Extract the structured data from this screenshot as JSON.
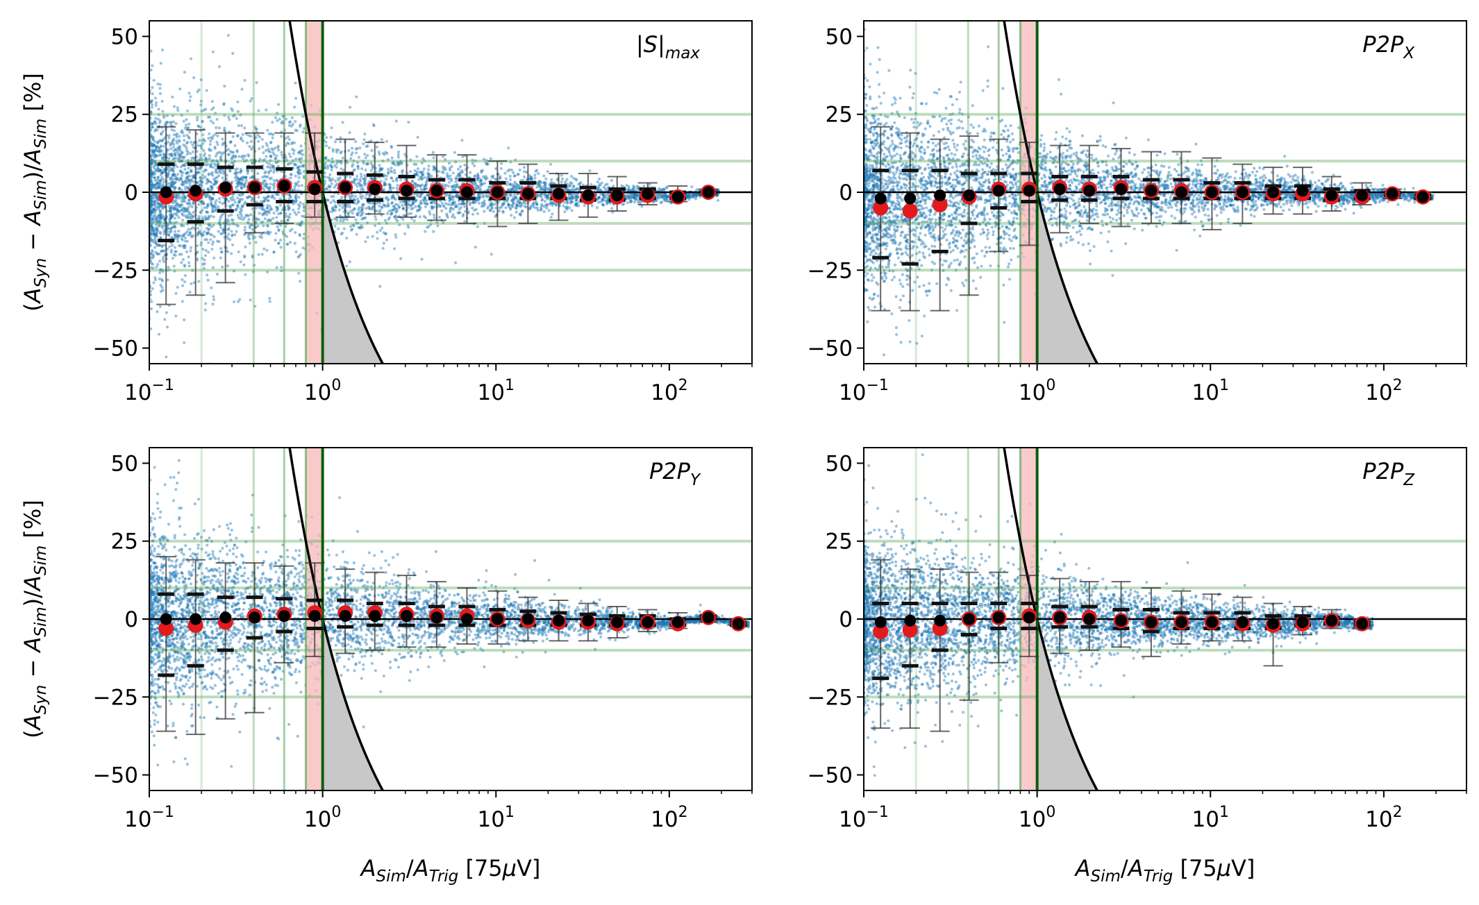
{
  "figure": {
    "ylabel": "(A_Syn − A_Sim)/A_Sim [%]",
    "xlabel": "A_Sim/A_Trig [75μV]"
  },
  "colors": {
    "scatter": "#1f77b4",
    "mean": "#e31a1c",
    "median": "#000000",
    "error_bar": "#333333",
    "grid_green": "#5aa85a",
    "threshold_line": "#0b5d0b",
    "shade_red": "#f6b8b8",
    "shade_gray": "#c8c8c8"
  },
  "shared_axes": {
    "x_scale": "log",
    "xlim": [
      0.1,
      300
    ],
    "ylim": [
      -55,
      55
    ],
    "x_ticks": [
      0.1,
      1,
      10,
      100
    ],
    "x_tick_labels": [
      {
        "base": "10",
        "exp": "−1"
      },
      {
        "base": "10",
        "exp": "0"
      },
      {
        "base": "10",
        "exp": "1"
      },
      {
        "base": "10",
        "exp": "2"
      }
    ],
    "y_ticks": [
      50,
      25,
      0,
      -25,
      -50
    ],
    "y_tick_labels": [
      "50",
      "25",
      "0",
      "−25",
      "−50"
    ],
    "horizontal_lines": [
      25,
      10,
      -10,
      -25
    ],
    "vertical_lines": [
      0.2,
      0.4,
      0.6,
      0.8
    ],
    "threshold": 1.0
  },
  "chart_data": [
    {
      "type": "scatter",
      "title": "|S|",
      "title_sub": "max",
      "title_sub_style": "italic",
      "x": [
        0.125,
        0.185,
        0.275,
        0.405,
        0.6,
        0.9,
        1.35,
        2.0,
        3.05,
        4.55,
        6.8,
        10.2,
        15.3,
        23,
        34,
        50,
        75,
        112,
        168
      ],
      "mean": [
        -1.5,
        -0.5,
        1,
        1.5,
        2,
        1.5,
        1.5,
        1.5,
        1,
        0.5,
        0.5,
        0,
        -0.5,
        -1,
        -1.5,
        -1.5,
        -1,
        -1.5,
        0
      ],
      "median": [
        0,
        0.5,
        1.5,
        1.5,
        2,
        1,
        1.5,
        1,
        0.5,
        0.5,
        0,
        0,
        -0.5,
        -0.5,
        -1,
        -1,
        -0.5,
        -1.5,
        0
      ],
      "whisker_low": [
        -36,
        -33,
        -29,
        -13,
        -10,
        -8,
        -8,
        -7,
        -8,
        -9,
        -10,
        -11,
        -10,
        -9,
        -8,
        -6,
        -4,
        -3,
        -1
      ],
      "whisker_high": [
        21,
        20,
        19,
        19,
        19,
        19,
        17,
        16,
        15,
        12,
        12,
        10,
        9,
        6,
        6,
        5,
        3,
        2,
        1
      ],
      "q_low": [
        -15.5,
        -9.5,
        -6,
        -4,
        -3,
        -3,
        -3,
        -2.5,
        -2,
        -2,
        -2,
        -2,
        -2,
        -2,
        -2.5,
        -2.5,
        -2,
        -2,
        0
      ],
      "q_high": [
        9,
        9,
        8,
        8,
        7.5,
        6.5,
        6,
        5.5,
        5,
        4,
        4,
        3,
        3,
        2,
        1.5,
        1,
        1,
        0,
        0
      ],
      "scatter_spread": [
        33,
        31,
        29,
        27,
        25,
        23,
        20,
        17,
        14,
        12,
        10,
        9,
        8,
        6,
        5,
        4,
        3,
        2,
        1
      ]
    },
    {
      "type": "scatter",
      "title": "P2P",
      "title_sub": "X",
      "title_sub_style": "italic",
      "x": [
        0.125,
        0.185,
        0.275,
        0.405,
        0.6,
        0.9,
        1.35,
        2.0,
        3.05,
        4.55,
        6.8,
        10.2,
        15.3,
        23,
        34,
        50,
        75,
        112,
        168
      ],
      "mean": [
        -5,
        -6,
        -4,
        -1.5,
        1,
        1,
        1.5,
        1,
        1.5,
        0.5,
        0.5,
        0,
        0,
        -0.5,
        -0.5,
        -1.5,
        -1.5,
        -0.5,
        -1.5
      ],
      "median": [
        -2,
        -2,
        -1,
        -1,
        0.5,
        0.5,
        1,
        0.5,
        1,
        0.5,
        0,
        0,
        0,
        0,
        0.5,
        -1,
        -1,
        -0.5,
        -1.5
      ],
      "whisker_low": [
        -38,
        -38,
        -38,
        -33,
        -19,
        -17,
        -13,
        -10,
        -11,
        -10,
        -10,
        -12,
        -10,
        -7,
        -7,
        -6,
        -4,
        -2,
        -2
      ],
      "whisker_high": [
        21,
        19,
        17,
        18,
        17,
        16,
        15,
        15,
        14,
        13,
        13,
        11,
        9,
        8,
        8,
        5,
        3,
        1,
        0
      ],
      "q_low": [
        -21,
        -23,
        -19,
        -10,
        -5,
        -3,
        -2.5,
        -2.5,
        -2,
        -2,
        -2,
        -2,
        -2,
        -2,
        -2,
        -2.5,
        -2,
        -1,
        -2
      ],
      "q_high": [
        7,
        7,
        7,
        6,
        6,
        6,
        5,
        5,
        5,
        4,
        4,
        3,
        3,
        2,
        2,
        1,
        0.5,
        0,
        -1
      ],
      "scatter_spread": [
        35,
        33,
        31,
        28,
        25,
        23,
        20,
        17,
        14,
        12,
        10,
        9,
        8,
        6,
        5,
        4,
        3,
        2,
        1
      ]
    },
    {
      "type": "scatter",
      "title": "P2P",
      "title_sub": "Y",
      "title_sub_style": "italic",
      "x": [
        0.125,
        0.185,
        0.275,
        0.405,
        0.6,
        0.9,
        1.35,
        2.0,
        3.05,
        4.55,
        6.8,
        10.2,
        15.3,
        23,
        34,
        50,
        75,
        112,
        168,
        250
      ],
      "mean": [
        -3,
        -2,
        -1,
        1,
        1.5,
        2,
        2,
        2,
        1.5,
        1,
        1,
        0,
        -0.5,
        -1,
        -1,
        -1.5,
        -1,
        -1.5,
        0.5,
        -1.5
      ],
      "median": [
        0,
        0,
        0.5,
        0.5,
        1,
        1,
        1,
        1,
        1,
        0.5,
        0,
        0,
        0,
        -0.5,
        -0.5,
        -1,
        -1,
        -1,
        0.5,
        -1.5
      ],
      "whisker_low": [
        -36,
        -37,
        -32,
        -30,
        -14,
        -12,
        -11,
        -10,
        -9,
        -9,
        -8,
        -8,
        -7,
        -7,
        -7,
        -6,
        -4,
        -3,
        -1,
        -2
      ],
      "whisker_high": [
        20,
        19,
        18,
        18,
        17,
        18,
        16,
        15,
        14,
        12,
        10,
        9,
        7,
        6,
        5,
        4,
        3,
        2,
        1,
        0
      ],
      "q_low": [
        -18,
        -15,
        -10,
        -6,
        -4,
        -3,
        -2.5,
        -2,
        -2,
        -2,
        -2,
        -2,
        -2,
        -2,
        -2,
        -2,
        -2,
        -2,
        0,
        -2
      ],
      "q_high": [
        8,
        8,
        7,
        7,
        6.5,
        6,
        6,
        5,
        5,
        4,
        4,
        3,
        2.5,
        2,
        1.5,
        1,
        1,
        0,
        1,
        -1
      ],
      "scatter_spread": [
        33,
        31,
        29,
        27,
        25,
        23,
        21,
        18,
        15,
        12,
        10,
        9,
        8,
        6,
        5,
        4,
        3,
        2,
        1,
        1
      ]
    },
    {
      "type": "scatter",
      "title": "P2P",
      "title_sub": "Z",
      "title_sub_style": "italic",
      "x": [
        0.125,
        0.185,
        0.275,
        0.405,
        0.6,
        0.9,
        1.35,
        2.0,
        3.05,
        4.55,
        6.8,
        10.2,
        15.3,
        23,
        34,
        50,
        75
      ],
      "mean": [
        -4,
        -3.5,
        -3,
        0,
        0.5,
        1,
        0.5,
        0.5,
        -0.5,
        -1,
        -1,
        -1,
        -1.5,
        -2,
        -1.5,
        -0.5,
        -1.5
      ],
      "median": [
        -1,
        -0.5,
        -0.5,
        0,
        0.5,
        0.5,
        0.5,
        0,
        -0.5,
        -1,
        -1,
        -1,
        -1,
        -1.5,
        -1,
        -0.5,
        -1.5
      ],
      "whisker_low": [
        -35,
        -35,
        -36,
        -26,
        -14,
        -12,
        -11,
        -10,
        -9,
        -12,
        -8,
        -7,
        -7,
        -15,
        -5,
        -3,
        -3
      ],
      "whisker_high": [
        19,
        16,
        16,
        15,
        15,
        14,
        13,
        12,
        12,
        10,
        9,
        8,
        7,
        5,
        4,
        3,
        0
      ],
      "q_low": [
        -19,
        -15,
        -10,
        -5,
        -3,
        -3,
        -2.5,
        -2.5,
        -3,
        -4,
        -3,
        -3,
        -3,
        -3,
        -2,
        -1.5,
        -2
      ],
      "q_high": [
        5,
        5,
        5,
        5,
        5,
        5,
        4,
        4,
        3,
        3,
        2,
        2,
        2,
        1,
        1,
        0.5,
        -1
      ],
      "scatter_spread": [
        30,
        28,
        27,
        25,
        23,
        21,
        18,
        15,
        12,
        10,
        9,
        8,
        7,
        6,
        5,
        3,
        2
      ]
    }
  ]
}
